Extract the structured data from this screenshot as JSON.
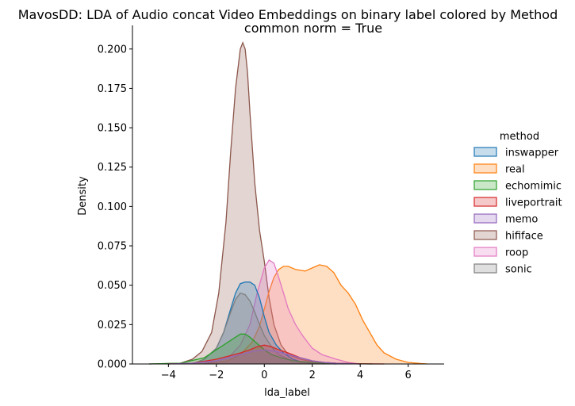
{
  "chart_data": {
    "type": "area",
    "title": "MavosDD: LDA of Audio concat Video Embeddings on binary label colored by Method",
    "subtitle": "common norm = True",
    "xlabel": "lda_label",
    "ylabel": "Density",
    "xlim": [
      -5.5,
      7.5
    ],
    "ylim": [
      0,
      0.215
    ],
    "xticks": [
      -4,
      -2,
      0,
      2,
      4,
      6
    ],
    "yticks": [
      0.0,
      0.025,
      0.05,
      0.075,
      0.1,
      0.125,
      0.15,
      0.175,
      0.2
    ],
    "ytick_labels": [
      "0.000",
      "0.025",
      "0.050",
      "0.075",
      "0.100",
      "0.125",
      "0.150",
      "0.175",
      "0.200"
    ],
    "grid": false,
    "legend": {
      "title": "method",
      "placement": "right"
    },
    "series": [
      {
        "name": "hififace",
        "color": "#8c564b",
        "x": [
          -4.8,
          -3.5,
          -3.0,
          -2.6,
          -2.2,
          -1.9,
          -1.6,
          -1.4,
          -1.2,
          -1.0,
          -0.9,
          -0.8,
          -0.7,
          -0.6,
          -0.4,
          -0.2,
          0.0,
          0.2,
          0.4,
          0.7,
          1.0,
          1.5,
          2.0,
          3.0,
          4.0
        ],
        "y": [
          0.0,
          0.0005,
          0.003,
          0.008,
          0.02,
          0.045,
          0.09,
          0.135,
          0.175,
          0.2,
          0.204,
          0.2,
          0.185,
          0.16,
          0.115,
          0.085,
          0.065,
          0.042,
          0.025,
          0.012,
          0.006,
          0.003,
          0.0015,
          0.0005,
          0.0
        ]
      },
      {
        "name": "real",
        "color": "#ff7f0e",
        "x": [
          -2.5,
          -1.5,
          -1.0,
          -0.5,
          -0.2,
          0.0,
          0.2,
          0.4,
          0.6,
          0.8,
          1.0,
          1.3,
          1.7,
          2.0,
          2.3,
          2.6,
          2.9,
          3.2,
          3.5,
          3.8,
          4.1,
          4.4,
          4.7,
          5.0,
          5.5,
          6.0,
          6.5,
          6.8
        ],
        "y": [
          0.0,
          0.002,
          0.006,
          0.014,
          0.024,
          0.035,
          0.046,
          0.055,
          0.06,
          0.062,
          0.062,
          0.06,
          0.059,
          0.061,
          0.063,
          0.062,
          0.058,
          0.05,
          0.045,
          0.038,
          0.028,
          0.02,
          0.012,
          0.007,
          0.003,
          0.001,
          0.0003,
          0.0
        ]
      },
      {
        "name": "roop",
        "color": "#e377c2",
        "x": [
          -2.5,
          -1.5,
          -1.0,
          -0.6,
          -0.3,
          0.0,
          0.2,
          0.4,
          0.6,
          0.8,
          1.0,
          1.3,
          1.6,
          2.0,
          2.4,
          3.0,
          3.5,
          4.0
        ],
        "y": [
          0.0,
          0.004,
          0.012,
          0.025,
          0.045,
          0.061,
          0.066,
          0.064,
          0.055,
          0.045,
          0.035,
          0.025,
          0.018,
          0.01,
          0.006,
          0.003,
          0.001,
          0.0
        ]
      },
      {
        "name": "inswapper",
        "color": "#1f77b4",
        "x": [
          -3.0,
          -2.5,
          -2.0,
          -1.7,
          -1.4,
          -1.2,
          -1.0,
          -0.8,
          -0.6,
          -0.4,
          -0.2,
          0.0,
          0.2,
          0.5,
          0.8,
          1.2,
          1.6,
          2.0,
          2.5,
          3.0
        ],
        "y": [
          0.0,
          0.003,
          0.01,
          0.02,
          0.035,
          0.045,
          0.051,
          0.052,
          0.052,
          0.05,
          0.042,
          0.03,
          0.02,
          0.012,
          0.007,
          0.003,
          0.001,
          0.0005,
          0.0002,
          0.0
        ]
      },
      {
        "name": "sonic",
        "color": "#7f7f7f",
        "x": [
          -3.0,
          -2.5,
          -2.0,
          -1.7,
          -1.4,
          -1.2,
          -1.0,
          -0.8,
          -0.6,
          -0.4,
          -0.2,
          0.0,
          0.3,
          0.6,
          1.0,
          1.5,
          2.0,
          2.5
        ],
        "y": [
          0.0,
          0.003,
          0.01,
          0.02,
          0.033,
          0.041,
          0.045,
          0.044,
          0.04,
          0.033,
          0.025,
          0.018,
          0.011,
          0.006,
          0.003,
          0.001,
          0.0005,
          0.0
        ]
      },
      {
        "name": "echomimic",
        "color": "#2ca02c",
        "x": [
          -4.8,
          -3.5,
          -2.5,
          -2.0,
          -1.5,
          -1.2,
          -1.0,
          -0.8,
          -0.6,
          -0.3,
          0.0,
          0.3,
          0.7,
          1.2,
          2.0,
          3.0,
          4.5
        ],
        "y": [
          0.0,
          0.0005,
          0.004,
          0.009,
          0.014,
          0.017,
          0.019,
          0.019,
          0.017,
          0.013,
          0.009,
          0.006,
          0.004,
          0.002,
          0.001,
          0.0003,
          0.0
        ]
      },
      {
        "name": "liveportrait",
        "color": "#d62728",
        "x": [
          -4.0,
          -3.0,
          -2.0,
          -1.5,
          -1.0,
          -0.6,
          -0.3,
          0.0,
          0.3,
          0.6,
          1.0,
          1.5,
          2.0,
          2.5,
          3.0,
          4.0,
          5.0
        ],
        "y": [
          0.0,
          0.0005,
          0.003,
          0.005,
          0.007,
          0.009,
          0.011,
          0.012,
          0.011,
          0.009,
          0.007,
          0.004,
          0.002,
          0.001,
          0.0005,
          0.0001,
          0.0
        ]
      },
      {
        "name": "memo",
        "color": "#9467bd",
        "x": [
          -4.0,
          -3.0,
          -2.0,
          -1.5,
          -1.0,
          -0.5,
          0.0,
          0.5,
          1.0,
          1.5,
          2.0,
          2.5,
          3.0,
          4.0
        ],
        "y": [
          0.0,
          0.0005,
          0.002,
          0.004,
          0.006,
          0.008,
          0.009,
          0.008,
          0.006,
          0.004,
          0.002,
          0.001,
          0.0004,
          0.0
        ]
      }
    ],
    "legend_order": [
      "inswapper",
      "real",
      "echomimic",
      "liveportrait",
      "memo",
      "hififace",
      "roop",
      "sonic"
    ]
  }
}
